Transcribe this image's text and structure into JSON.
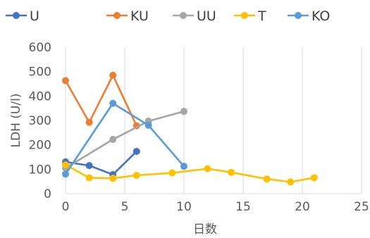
{
  "chart_data": {
    "type": "line",
    "title": "",
    "xlabel": "日数",
    "ylabel": "LDH (U/l)",
    "xlim": [
      0,
      25
    ],
    "ylim": [
      0,
      600
    ],
    "x_ticks": [
      0,
      5,
      10,
      15,
      20,
      25
    ],
    "y_ticks": [
      0,
      100,
      200,
      300,
      400,
      500,
      600
    ],
    "x_tick_labels": [
      "0",
      "5",
      "10",
      "15",
      "20",
      "25"
    ],
    "y_tick_labels": [
      "0",
      "100",
      "200",
      "300",
      "400",
      "500",
      "600"
    ],
    "grid": "vertical",
    "legend_position": "top",
    "series": [
      {
        "name": "U",
        "color": "#4472C4",
        "points": [
          [
            0,
            130
          ],
          [
            2,
            115
          ],
          [
            4,
            78
          ],
          [
            6,
            173
          ]
        ]
      },
      {
        "name": "KU",
        "color": "#ED7D31",
        "points": [
          [
            0,
            463
          ],
          [
            2,
            292
          ],
          [
            4,
            485
          ],
          [
            6,
            278
          ]
        ]
      },
      {
        "name": "UU",
        "color": "#A5A5A5",
        "points": [
          [
            0,
            105
          ],
          [
            4,
            222
          ],
          [
            7,
            297
          ],
          [
            10,
            337
          ]
        ]
      },
      {
        "name": "T",
        "color": "#FFC000",
        "points": [
          [
            0,
            118
          ],
          [
            2,
            65
          ],
          [
            4,
            63
          ],
          [
            6,
            75
          ],
          [
            9,
            85
          ],
          [
            12,
            102
          ],
          [
            14,
            87
          ],
          [
            17,
            60
          ],
          [
            19,
            48
          ],
          [
            21,
            65
          ]
        ]
      },
      {
        "name": "KO",
        "color": "#5B9BD5",
        "points": [
          [
            0,
            80
          ],
          [
            4,
            370
          ],
          [
            7,
            280
          ],
          [
            10,
            112
          ]
        ]
      }
    ]
  }
}
